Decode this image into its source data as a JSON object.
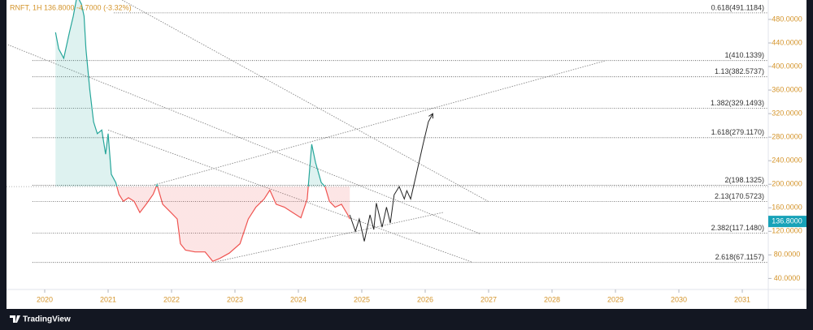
{
  "chart_data": {
    "type": "area",
    "title": "RNFT, 1H  136.8000  -4.7000 (-3.32%)",
    "brand": "TradingView",
    "baseline": 196,
    "xlim": [
      2019.295,
      2031.41
    ],
    "ylim": [
      24,
      513
    ],
    "xticks": [
      2020,
      2021,
      2022,
      2023,
      2024,
      2025,
      2026,
      2027,
      2028,
      2029,
      2030,
      2031
    ],
    "yticks": [
      {
        "value": 40,
        "label": "40.0000"
      },
      {
        "value": 80,
        "label": "80.0000"
      },
      {
        "value": 120,
        "label": "120.0000"
      },
      {
        "value": 160,
        "label": "160.0000"
      },
      {
        "value": 200,
        "label": "200.0000"
      },
      {
        "value": 240,
        "label": "240.0000"
      },
      {
        "value": 280,
        "label": "280.0000"
      },
      {
        "value": 320,
        "label": "320.0000"
      },
      {
        "value": 360,
        "label": "360.0000"
      },
      {
        "value": 400,
        "label": "400.0000"
      },
      {
        "value": 440,
        "label": "440.0000"
      },
      {
        "value": 480,
        "label": "480.0000"
      }
    ],
    "last_price": {
      "value": 136.8,
      "label": "136.8000"
    },
    "colors": {
      "up": "#26a69a",
      "down": "#ef5350",
      "projection": "#222222",
      "trend": "#888888",
      "tag": "#17a2b8"
    },
    "series": [
      {
        "x": [
          2020.17,
          2020.22,
          2020.3,
          2020.39,
          2020.45,
          2020.51,
          2020.58,
          2020.62,
          2020.65,
          2020.71,
          2020.77,
          2020.83,
          2020.9,
          2020.96,
          2021.0,
          2021.05,
          2021.12,
          2021.17,
          2021.24,
          2021.32,
          2021.41,
          2021.5,
          2021.6,
          2021.71,
          2021.77,
          2021.86,
          2021.99,
          2022.09,
          2022.14,
          2022.22,
          2022.37,
          2022.53,
          2022.65,
          2022.76,
          2022.91,
          2023.08,
          2023.21,
          2023.33,
          2023.46,
          2023.55,
          2023.65,
          2023.78,
          2023.91,
          2024.04,
          2024.14,
          2024.21,
          2024.27,
          2024.36,
          2024.42,
          2024.49,
          2024.58,
          2024.68,
          2024.78,
          2024.81
        ],
        "values": [
          458,
          430,
          414,
          458,
          485.5,
          520,
          506,
          485.5,
          430,
          361,
          306,
          286,
          292,
          251,
          286,
          217,
          203,
          183,
          171,
          177,
          171,
          152,
          166,
          183,
          199,
          166,
          152,
          141,
          99,
          88,
          85,
          85,
          69,
          74,
          83,
          99,
          141,
          161,
          175,
          190,
          166,
          161,
          152,
          143,
          175,
          268,
          237,
          203,
          196,
          171,
          161,
          166,
          148,
          141
        ]
      },
      {
        "x": [
          2024.81,
          2024.9,
          2024.96,
          2025.04,
          2025.13,
          2025.19,
          2025.23,
          2025.32,
          2025.39,
          2025.45,
          2025.51,
          2025.59,
          2025.67,
          2025.71,
          2025.77,
          2025.86,
          2025.96,
          2026.05,
          2026.12
        ],
        "values": [
          148,
          120,
          141,
          103,
          148,
          123,
          168,
          127,
          161,
          134,
          182,
          196,
          175,
          189,
          175,
          217,
          265,
          306,
          320
        ]
      }
    ],
    "trendlines": [
      {
        "x": [
          2021.22,
          2026.99
        ],
        "y": [
          513,
          171
        ]
      },
      {
        "x": [
          2019.42,
          2026.86
        ],
        "y": [
          437,
          116
        ]
      },
      {
        "x": [
          2021.0,
          2026.73
        ],
        "y": [
          292,
          68
        ]
      },
      {
        "x": [
          2021.73,
          2028.85
        ],
        "y": [
          199,
          410
        ]
      },
      {
        "x": [
          2022.69,
          2026.28
        ],
        "y": [
          68,
          152
        ]
      }
    ],
    "fib_levels": [
      {
        "value": 491.1184,
        "label": "0.618(491.1184)"
      },
      {
        "value": 410.1339,
        "label": "1(410.1339)"
      },
      {
        "value": 382.5737,
        "label": "1.13(382.5737)"
      },
      {
        "value": 329.1493,
        "label": "1.382(329.1493)"
      },
      {
        "value": 279.117,
        "label": "1.618(279.1170)"
      },
      {
        "value": 198.1325,
        "label": "2(198.1325)"
      },
      {
        "value": 170.5723,
        "label": "2.13(170.5723)"
      },
      {
        "value": 117.148,
        "label": "2.382(117.1480)"
      },
      {
        "value": 67.1157,
        "label": "2.618(67.1157)"
      }
    ]
  }
}
